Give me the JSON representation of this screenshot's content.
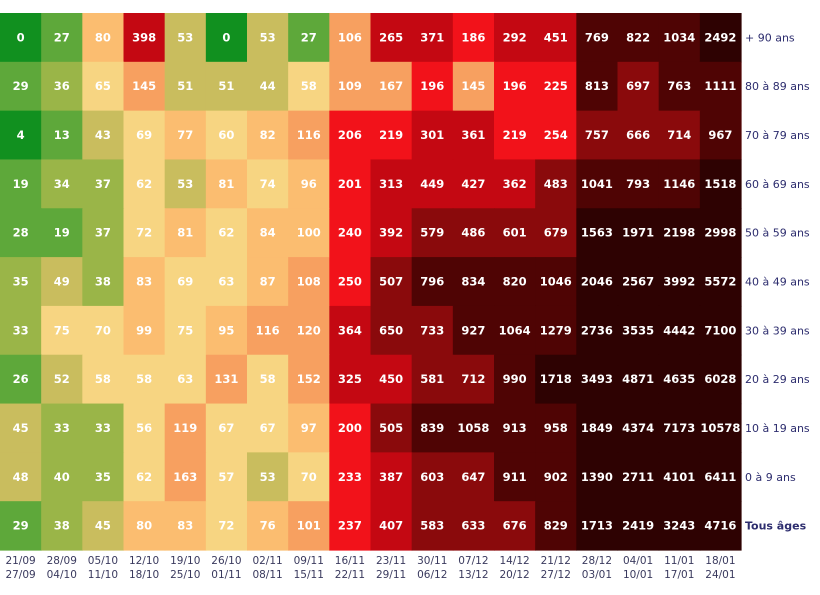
{
  "chart_data": {
    "type": "heatmap",
    "columns": [
      {
        "start": "21/09",
        "end": "27/09"
      },
      {
        "start": "28/09",
        "end": "04/10"
      },
      {
        "start": "05/10",
        "end": "11/10"
      },
      {
        "start": "12/10",
        "end": "18/10"
      },
      {
        "start": "19/10",
        "end": "25/10"
      },
      {
        "start": "26/10",
        "end": "01/11"
      },
      {
        "start": "02/11",
        "end": "08/11"
      },
      {
        "start": "09/11",
        "end": "15/11"
      },
      {
        "start": "16/11",
        "end": "22/11"
      },
      {
        "start": "23/11",
        "end": "29/11"
      },
      {
        "start": "30/11",
        "end": "06/12"
      },
      {
        "start": "07/12",
        "end": "13/12"
      },
      {
        "start": "14/12",
        "end": "20/12"
      },
      {
        "start": "21/12",
        "end": "27/12"
      },
      {
        "start": "28/12",
        "end": "03/01"
      },
      {
        "start": "04/01",
        "end": "10/01"
      },
      {
        "start": "11/01",
        "end": "17/01"
      },
      {
        "start": "18/01",
        "end": "24/01"
      }
    ],
    "rows": [
      {
        "label": "+ 90 ans",
        "values": [
          0,
          27,
          80,
          398,
          53,
          0,
          53,
          27,
          106,
          265,
          371,
          186,
          292,
          451,
          769,
          822,
          1034,
          2492
        ]
      },
      {
        "label": "80 à 89 ans",
        "values": [
          29,
          36,
          65,
          145,
          51,
          51,
          44,
          58,
          109,
          167,
          196,
          145,
          196,
          225,
          813,
          697,
          763,
          1111
        ]
      },
      {
        "label": "70 à 79 ans",
        "values": [
          4,
          13,
          43,
          69,
          77,
          60,
          82,
          116,
          206,
          219,
          301,
          361,
          219,
          254,
          757,
          666,
          714,
          967
        ]
      },
      {
        "label": "60 à 69 ans",
        "values": [
          19,
          34,
          37,
          62,
          53,
          81,
          74,
          96,
          201,
          313,
          449,
          427,
          362,
          483,
          1041,
          793,
          1146,
          1518
        ]
      },
      {
        "label": "50 à 59 ans",
        "values": [
          28,
          19,
          37,
          72,
          81,
          62,
          84,
          100,
          240,
          392,
          579,
          486,
          601,
          679,
          1563,
          1971,
          2198,
          2998
        ]
      },
      {
        "label": "40 à 49 ans",
        "values": [
          35,
          49,
          38,
          83,
          69,
          63,
          87,
          108,
          250,
          507,
          796,
          834,
          820,
          1046,
          2046,
          2567,
          3992,
          5572
        ]
      },
      {
        "label": "30 à 39 ans",
        "values": [
          33,
          75,
          70,
          99,
          75,
          95,
          116,
          120,
          364,
          650,
          733,
          927,
          1064,
          1279,
          2736,
          3535,
          4442,
          7100
        ]
      },
      {
        "label": "20 à 29 ans",
        "values": [
          26,
          52,
          58,
          58,
          63,
          131,
          58,
          152,
          325,
          450,
          581,
          712,
          990,
          1718,
          3493,
          4871,
          4635,
          6028
        ]
      },
      {
        "label": "10 à 19 ans",
        "values": [
          45,
          33,
          33,
          56,
          119,
          67,
          67,
          97,
          200,
          505,
          839,
          1058,
          913,
          958,
          1849,
          4374,
          7173,
          10578
        ]
      },
      {
        "label": "0 à 9 ans",
        "values": [
          48,
          40,
          35,
          62,
          163,
          57,
          53,
          70,
          233,
          387,
          603,
          647,
          911,
          902,
          1390,
          2711,
          4101,
          6411
        ]
      },
      {
        "label": "Tous âges",
        "values": [
          29,
          38,
          45,
          80,
          83,
          72,
          76,
          101,
          237,
          407,
          583,
          633,
          676,
          829,
          1713,
          2419,
          3243,
          4716
        ],
        "total": true
      }
    ],
    "colors": {
      "green_dark": "#11901f",
      "green": "#5ea83a",
      "olive": "#9ab548",
      "khaki": "#c9bd5e",
      "pale_yellow": "#f7d582",
      "light_orange": "#fbbd70",
      "orange": "#f7a060",
      "red": "#f2121a",
      "crimson": "#c40812",
      "dark_red": "#8a0a0c",
      "maroon": "#4f0404",
      "darkest": "#2e0202"
    }
  }
}
